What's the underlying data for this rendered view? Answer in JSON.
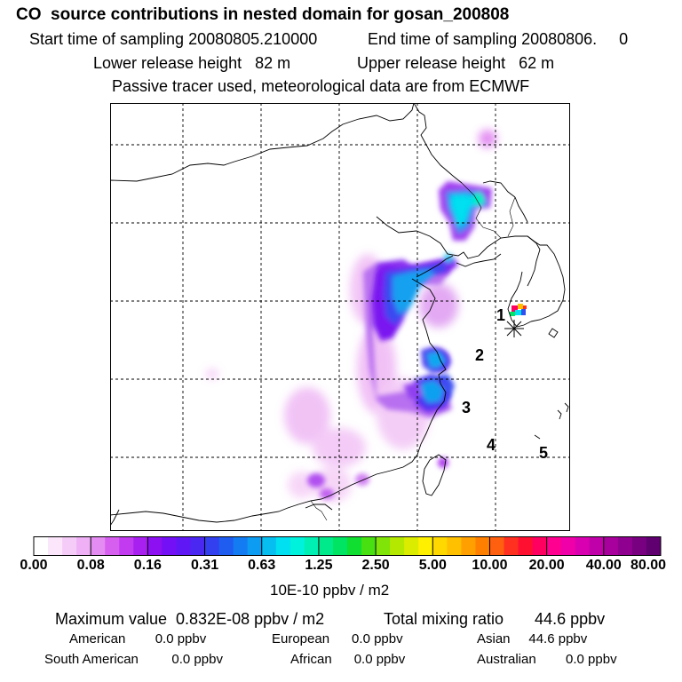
{
  "header": {
    "title": "CO  source contributions in nested domain for gosan_200808",
    "start_label": "Start time of sampling 20080805.210000",
    "end_label": "End time of sampling 20080806.     0",
    "lower_label": "Lower release height   82 m",
    "upper_label": "Upper release height   62 m",
    "tracer_note": "Passive tracer used, meteorological data are from ECMWF"
  },
  "map": {
    "region_markers": [
      "1",
      "2",
      "3",
      "4",
      "5"
    ],
    "receptor_icon": "asterisk-icon"
  },
  "colorbar": {
    "unit": "10E-10 ppbv / m2",
    "labels": [
      "0.00",
      "0.08",
      "0.16",
      "0.31",
      "0.63",
      "1.25",
      "2.50",
      "5.00",
      "10.00",
      "20.00",
      "40.00",
      "80.00"
    ],
    "colors": [
      "#ffffff",
      "#fbe6fb",
      "#f5ccf7",
      "#efb0f5",
      "#e58cf2",
      "#d65ff0",
      "#c23bf0",
      "#a820f0",
      "#8c10f2",
      "#7410f5",
      "#5f18f5",
      "#4a28f2",
      "#3240f0",
      "#1f5cf0",
      "#147cf2",
      "#0c9cf2",
      "#06bef0",
      "#00e0f0",
      "#00f2dc",
      "#00f0b4",
      "#00ea8c",
      "#00e464",
      "#10de30",
      "#48e010",
      "#80e408",
      "#b4e800",
      "#dcec00",
      "#fff000",
      "#ffd800",
      "#ffc000",
      "#ffa000",
      "#ff8000",
      "#ff6010",
      "#ff3020",
      "#ff1030",
      "#ff0060",
      "#ff0090",
      "#f000a8",
      "#d800b0",
      "#c000a8",
      "#a8009c",
      "#900090",
      "#780080",
      "#600070"
    ]
  },
  "stats": {
    "max_label": "Maximum value  0.832E-08 ppbv / m2",
    "total_label": "Total mixing ratio       44.6 ppbv",
    "american": "American        0.0 ppbv",
    "european": "European      0.0 ppbv",
    "asian": "Asian     44.6 ppbv",
    "south_american": "South American         0.0 ppbv",
    "african": "African      0.0 ppbv",
    "australian": "Australian        0.0 ppbv"
  }
}
